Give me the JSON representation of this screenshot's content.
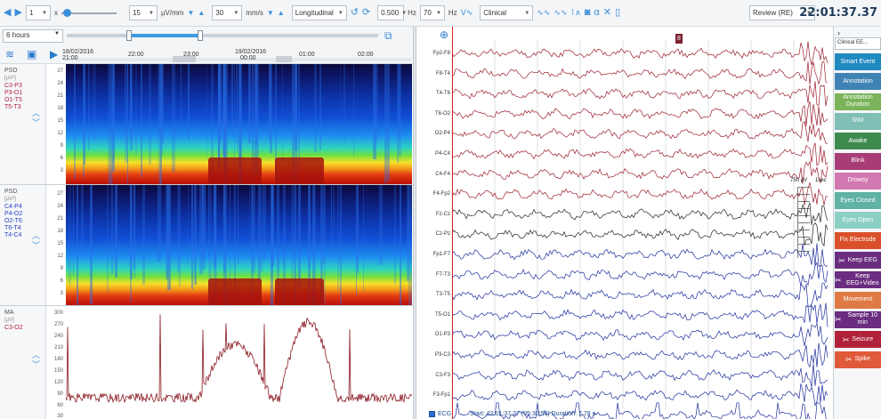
{
  "toolbar": {
    "page_value": "1",
    "x_label": "x",
    "sensitivity_value": "15",
    "sensitivity_unit": "µV/mm",
    "speed_value": "30",
    "speed_unit": "mm/s",
    "montage_value": "Longitudinal",
    "filter_low_value": "0.500",
    "filter_low_unit": "Hz",
    "filter_high_value": "70",
    "filter_high_unit": "Hz",
    "profile_value": "Clinical",
    "review_value": "Review (RE)",
    "clock": "22:01:37.37"
  },
  "timeline": {
    "duration_value": "6 hours",
    "start_date": "18/02/2016",
    "start_time": "21:00",
    "labels": [
      "22:00",
      "23:00",
      "19/02/2016",
      "00:00",
      "01:00",
      "02:00"
    ]
  },
  "panels": [
    {
      "title": "PSD",
      "unit": "[µV²]",
      "channels": [
        "C3-P3",
        "P3-O1",
        "O1-T5",
        "T5-T3"
      ],
      "channel_color": "#b0223a",
      "yticks": [
        "27",
        "24",
        "21",
        "18",
        "15",
        "12",
        "9",
        "6",
        "3"
      ]
    },
    {
      "title": "PSD",
      "unit": "[µV²]",
      "channels": [
        "C4-P4",
        "P4-O2",
        "O2-T6",
        "T6-T4",
        "T4-C4"
      ],
      "channel_color": "#2b3fbf",
      "yticks": [
        "27",
        "24",
        "21",
        "18",
        "15",
        "12",
        "9",
        "6",
        "3"
      ]
    },
    {
      "title": "MA",
      "unit": "[µV]",
      "channels": [
        "C3-O2"
      ],
      "channel_color": "#b0223a",
      "yticks": [
        "300",
        "270",
        "240",
        "210",
        "180",
        "150",
        "120",
        "90",
        "60",
        "30"
      ]
    }
  ],
  "eeg": {
    "channels": [
      {
        "label": "Fp2-F8",
        "color": "#9b1f2e"
      },
      {
        "label": "F8-T4",
        "color": "#9b1f2e"
      },
      {
        "label": "T4-T6",
        "color": "#9b1f2e"
      },
      {
        "label": "T6-O2",
        "color": "#9b1f2e"
      },
      {
        "label": "O2-P4",
        "color": "#9b1f2e"
      },
      {
        "label": "P4-C4",
        "color": "#9b1f2e"
      },
      {
        "label": "C4-F4",
        "color": "#9b1f2e"
      },
      {
        "label": "F4-Fp2",
        "color": "#9b1f2e"
      },
      {
        "label": "Fz-Cz",
        "color": "#222222"
      },
      {
        "label": "Cz-Pz",
        "color": "#222222"
      },
      {
        "label": "Fp1-F7",
        "color": "#1e2e9c"
      },
      {
        "label": "F7-T3",
        "color": "#1e2e9c"
      },
      {
        "label": "T3-T5",
        "color": "#1e2e9c"
      },
      {
        "label": "T5-O1",
        "color": "#1e2e9c"
      },
      {
        "label": "O1-P3",
        "color": "#1e2e9c"
      },
      {
        "label": "P3-C3",
        "color": "#1e2e9c"
      },
      {
        "label": "C3-F3",
        "color": "#1e2e9c"
      },
      {
        "label": "F3-Fp1",
        "color": "#1e2e9c"
      },
      {
        "label": "ECG",
        "color": "#1e2e9c"
      }
    ],
    "scale_label": "750 µV",
    "scale_time": "1sec",
    "marker": "8",
    "status_text": "Start: 22:01:37.37 (05:30:54) Duration: 7.78 s"
  },
  "sidebar": {
    "selector_value": "Clinical EE...",
    "buttons": [
      {
        "label": "Smart Event",
        "color": "#1f8ac0",
        "icon": ""
      },
      {
        "label": "Annotation",
        "color": "#3f83b4",
        "icon": ""
      },
      {
        "label": "Annotation Duration",
        "color": "#7ab35a",
        "icon": ""
      },
      {
        "label": "SWI",
        "color": "#7fbfb5",
        "icon": ""
      },
      {
        "label": "Awake",
        "color": "#3d8a4f",
        "icon": ""
      },
      {
        "label": "Blink",
        "color": "#a83c77",
        "icon": ""
      },
      {
        "label": "Drowsy",
        "color": "#d278b0",
        "icon": ""
      },
      {
        "label": "Eyes Closed",
        "color": "#5fb2a4",
        "icon": ""
      },
      {
        "label": "Eyes Open",
        "color": "#8cd0c4",
        "icon": ""
      },
      {
        "label": "Fix Electrode",
        "color": "#d9502a",
        "icon": ""
      },
      {
        "label": "Keep EEG",
        "color": "#6a2d7f",
        "icon": "X"
      },
      {
        "label": "Keep EEG+Video",
        "color": "#6a2d7f",
        "icon": "X"
      },
      {
        "label": "Movement",
        "color": "#e07a45",
        "icon": ""
      },
      {
        "label": "Sample 10 min",
        "color": "#6a2d7f",
        "icon": "X"
      },
      {
        "label": "Seizure",
        "color": "#b0223a",
        "icon": "X"
      },
      {
        "label": "Spike",
        "color": "#e05a3a",
        "icon": "X"
      }
    ]
  }
}
